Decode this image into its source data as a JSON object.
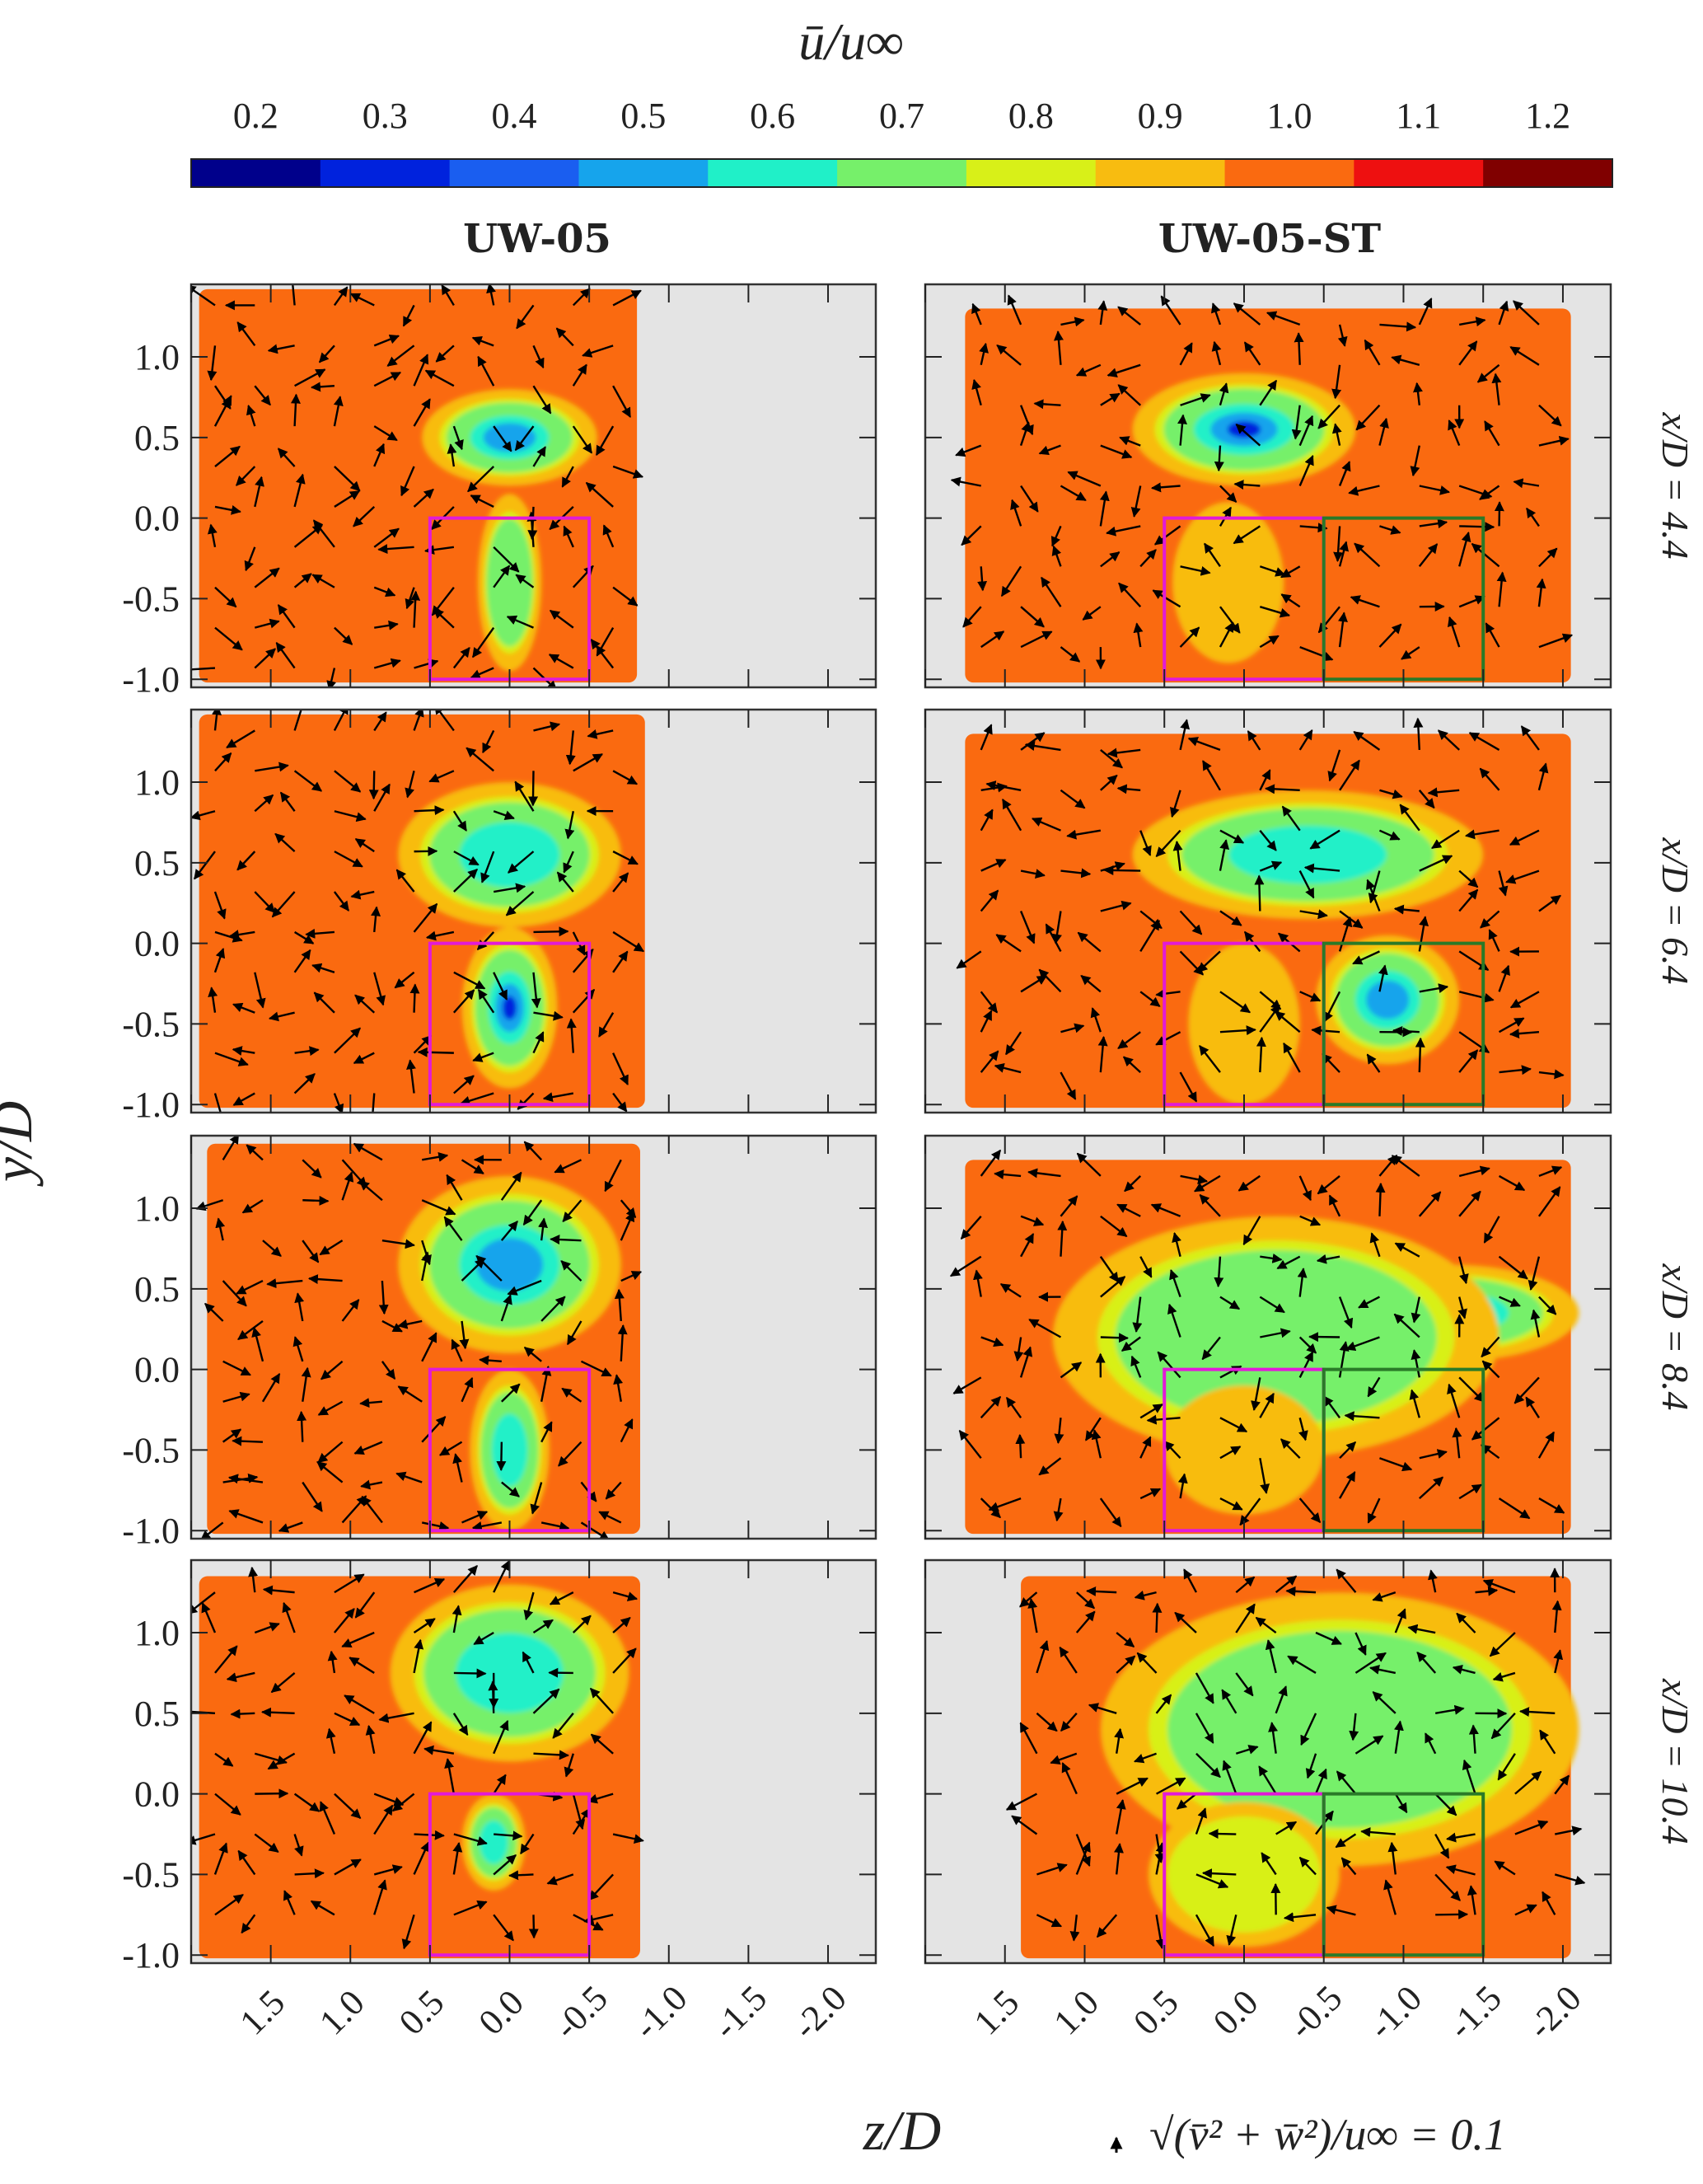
{
  "chart_data": {
    "type": "heatmap",
    "colorbar": {
      "label": "ū/u∞",
      "ticks": [
        "0.2",
        "0.3",
        "0.4",
        "0.5",
        "0.6",
        "0.7",
        "0.8",
        "0.9",
        "1.0",
        "1.1",
        "1.2"
      ],
      "colors": [
        "#00008b",
        "#0022dd",
        "#1a5ef0",
        "#16a4ec",
        "#20f0c8",
        "#76f06a",
        "#d8f018",
        "#f8bc10",
        "#fa6a10",
        "#ee1010",
        "#800000"
      ]
    },
    "columns": [
      "UW-05",
      "UW-05-ST"
    ],
    "rows": [
      "x/D = 4.4",
      "x/D = 6.4",
      "x/D = 8.4",
      "x/D = 10.4"
    ],
    "xlabel": "z/D",
    "ylabel": "y/D",
    "xticks": [
      "1.5",
      "1.0",
      "0.5",
      "0.0",
      "-0.5",
      "-1.0",
      "-1.5",
      "-2.0"
    ],
    "yticks": [
      "1.0",
      "0.5",
      "0.0",
      "-0.5",
      "-1.0"
    ],
    "xlim": [
      2.0,
      -2.3
    ],
    "ylim": [
      -1.05,
      1.45
    ],
    "vector_key": "√(v̄² + w̄²)/u∞ = 0.1",
    "boxes": [
      {
        "name": "magenta",
        "color": "#e21ad8",
        "z": [
          0.5,
          -0.5
        ],
        "y": [
          -1.0,
          0.0
        ]
      },
      {
        "name": "green",
        "color": "#2a7a28",
        "z": [
          -0.5,
          -1.5
        ],
        "y": [
          -1.0,
          0.0
        ]
      }
    ],
    "panels": [
      {
        "row": 0,
        "col": 0,
        "blobs": [
          [
            0.0,
            0.5,
            0.55,
            0.3,
            0.45
          ],
          [
            0.0,
            -0.4,
            0.2,
            0.55,
            0.6
          ]
        ]
      },
      {
        "row": 0,
        "col": 1,
        "blobs": [
          [
            0.0,
            0.55,
            0.7,
            0.35,
            0.3
          ],
          [
            0.1,
            -0.4,
            0.35,
            0.5,
            0.9
          ]
        ]
      },
      {
        "row": 1,
        "col": 0,
        "blobs": [
          [
            0.0,
            0.55,
            0.7,
            0.45,
            0.55
          ],
          [
            0.0,
            -0.4,
            0.3,
            0.5,
            0.3
          ]
        ]
      },
      {
        "row": 1,
        "col": 1,
        "blobs": [
          [
            -0.4,
            0.55,
            1.1,
            0.4,
            0.55
          ],
          [
            -0.9,
            -0.35,
            0.45,
            0.4,
            0.4
          ],
          [
            0.0,
            -0.5,
            0.35,
            0.5,
            0.9
          ]
        ]
      },
      {
        "row": 2,
        "col": 0,
        "blobs": [
          [
            0.0,
            0.65,
            0.7,
            0.55,
            0.45
          ],
          [
            0.0,
            -0.5,
            0.25,
            0.5,
            0.55
          ]
        ]
      },
      {
        "row": 2,
        "col": 1,
        "blobs": [
          [
            -1.3,
            0.35,
            0.8,
            0.3,
            0.45
          ],
          [
            -0.2,
            0.2,
            1.4,
            0.75,
            0.7
          ],
          [
            0.0,
            -0.5,
            0.5,
            0.4,
            0.9
          ]
        ]
      },
      {
        "row": 3,
        "col": 0,
        "blobs": [
          [
            0.0,
            0.75,
            0.75,
            0.55,
            0.55
          ],
          [
            0.1,
            -0.3,
            0.2,
            0.3,
            0.5
          ]
        ]
      },
      {
        "row": 3,
        "col": 1,
        "blobs": [
          [
            -0.6,
            0.4,
            1.5,
            0.85,
            0.65
          ],
          [
            0.0,
            -0.5,
            0.6,
            0.45,
            0.85
          ]
        ]
      }
    ]
  }
}
